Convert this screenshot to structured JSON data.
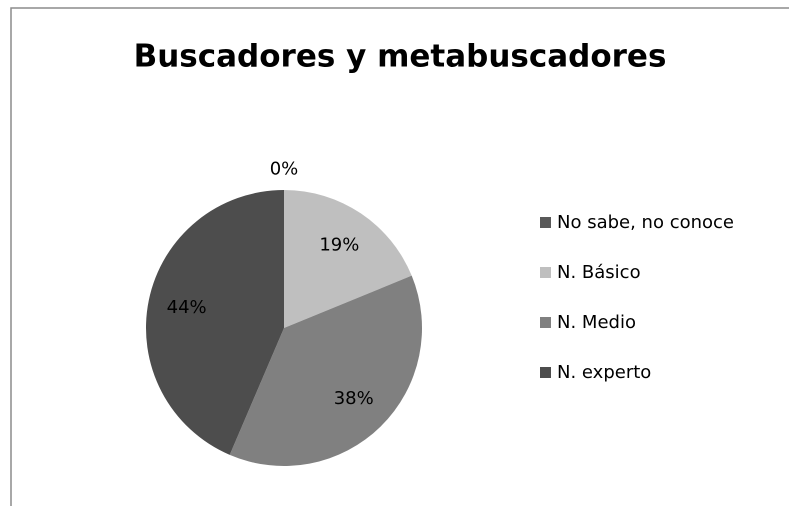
{
  "chart_data": {
    "type": "pie",
    "title": "Buscadores y metabuscadores",
    "categories": [
      "No sabe, no conoce",
      "N. Básico",
      "N. Medio",
      "N. experto"
    ],
    "values": [
      0,
      19,
      38,
      44
    ],
    "value_labels": [
      "0%",
      "19%",
      "38%",
      "44%"
    ],
    "colors": [
      "#595959",
      "#bfbfbf",
      "#808080",
      "#4d4d4d"
    ],
    "legend": "right"
  }
}
